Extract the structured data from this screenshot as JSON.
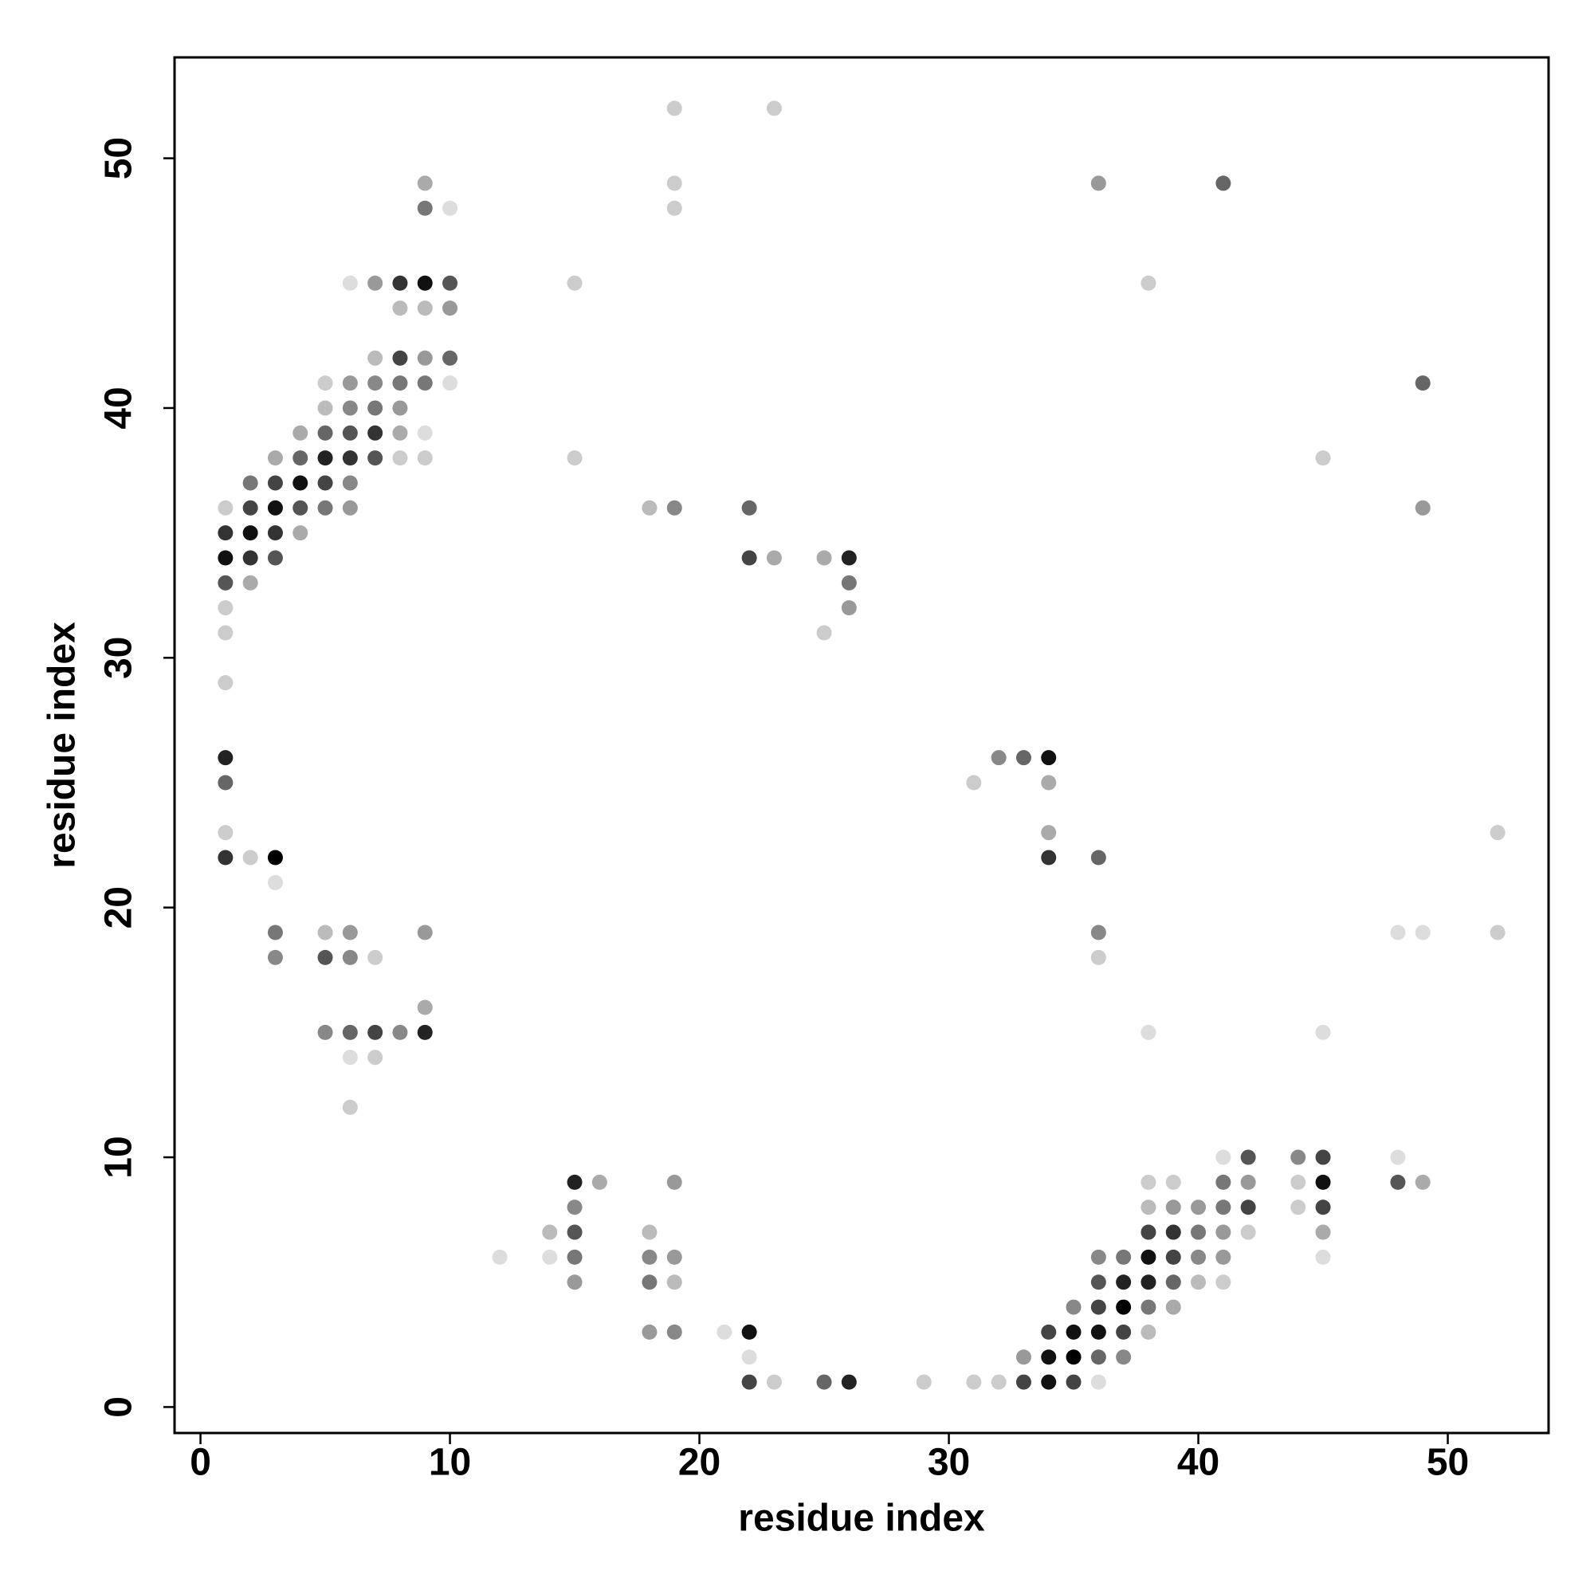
{
  "chart_data": {
    "type": "scatter",
    "xlabel": "residue index",
    "ylabel": "residue index",
    "xlim": [
      -1.04,
      54.04
    ],
    "ylim": [
      -1.04,
      54.04
    ],
    "xticks": [
      0,
      10,
      20,
      30,
      40,
      50
    ],
    "yticks": [
      0,
      10,
      20,
      30,
      40,
      50
    ],
    "x": [
      19,
      23,
      9,
      19,
      36,
      41,
      9,
      10,
      19,
      6,
      7,
      8,
      9,
      10,
      15,
      38,
      8,
      9,
      10,
      7,
      8,
      9,
      10,
      5,
      6,
      7,
      8,
      9,
      10,
      49,
      5,
      6,
      7,
      8,
      4,
      5,
      6,
      7,
      8,
      9,
      3,
      4,
      5,
      6,
      7,
      8,
      9,
      15,
      45,
      2,
      3,
      4,
      5,
      6,
      1,
      2,
      3,
      4,
      5,
      6,
      18,
      19,
      22,
      49,
      1,
      2,
      3,
      4,
      1,
      2,
      3,
      22,
      23,
      25,
      26,
      1,
      2,
      26,
      1,
      26,
      1,
      25,
      1,
      1,
      32,
      33,
      34,
      1,
      31,
      34,
      1,
      34,
      52,
      1,
      2,
      3,
      34,
      36,
      3,
      3,
      5,
      6,
      9,
      36,
      48,
      49,
      52,
      3,
      5,
      6,
      7,
      36,
      9,
      5,
      6,
      7,
      8,
      9,
      38,
      45,
      6,
      7,
      6,
      41,
      42,
      44,
      45,
      48,
      15,
      16,
      19,
      38,
      39,
      41,
      42,
      44,
      45,
      48,
      49,
      15,
      38,
      39,
      40,
      41,
      42,
      44,
      45,
      14,
      15,
      18,
      38,
      39,
      40,
      41,
      42,
      45,
      12,
      14,
      15,
      18,
      19,
      36,
      37,
      38,
      39,
      40,
      41,
      45,
      15,
      18,
      19,
      36,
      37,
      38,
      39,
      40,
      41,
      35,
      36,
      37,
      38,
      39,
      18,
      19,
      21,
      22,
      34,
      35,
      36,
      37,
      38,
      22,
      33,
      34,
      35,
      36,
      37,
      22,
      23,
      25,
      26,
      29,
      31,
      32,
      33,
      34,
      35,
      36
    ],
    "values": [
      52,
      52,
      49,
      49,
      49,
      49,
      48,
      48,
      48,
      45,
      45,
      45,
      45,
      45,
      45,
      45,
      44,
      44,
      44,
      42,
      42,
      42,
      42,
      41,
      41,
      41,
      41,
      41,
      41,
      41,
      40,
      40,
      40,
      40,
      39,
      39,
      39,
      39,
      39,
      39,
      38,
      38,
      38,
      38,
      38,
      38,
      38,
      38,
      38,
      37,
      37,
      37,
      37,
      37,
      36,
      36,
      36,
      36,
      36,
      36,
      36,
      36,
      36,
      36,
      35,
      35,
      35,
      35,
      34,
      34,
      34,
      34,
      34,
      34,
      34,
      33,
      33,
      33,
      32,
      32,
      31,
      31,
      29,
      26,
      26,
      26,
      26,
      25,
      25,
      25,
      23,
      23,
      23,
      22,
      22,
      22,
      22,
      22,
      21,
      19,
      19,
      19,
      19,
      19,
      19,
      19,
      19,
      18,
      18,
      18,
      18,
      18,
      16,
      15,
      15,
      15,
      15,
      15,
      15,
      15,
      14,
      14,
      12,
      10,
      10,
      10,
      10,
      10,
      9,
      9,
      9,
      9,
      9,
      9,
      9,
      9,
      9,
      9,
      9,
      8,
      8,
      8,
      8,
      8,
      8,
      8,
      8,
      7,
      7,
      7,
      7,
      7,
      7,
      7,
      7,
      7,
      6,
      6,
      6,
      6,
      6,
      6,
      6,
      6,
      6,
      6,
      6,
      6,
      5,
      5,
      5,
      5,
      5,
      5,
      5,
      5,
      5,
      4,
      4,
      4,
      4,
      4,
      3,
      3,
      3,
      3,
      3,
      3,
      3,
      3,
      3,
      2,
      2,
      2,
      2,
      2,
      2,
      1,
      1,
      1,
      1,
      1,
      1,
      1,
      1,
      1,
      1,
      1
    ],
    "colors": [
      "#ccc",
      "#ccc",
      "#aaa",
      "#ccc",
      "#999",
      "#666",
      "#777",
      "#ddd",
      "#ccc",
      "#ddd",
      "#999",
      "#333",
      "#111",
      "#555",
      "#ccc",
      "#ccc",
      "#bbb",
      "#bbb",
      "#999",
      "#bbb",
      "#444",
      "#999",
      "#666",
      "#ccc",
      "#999",
      "#888",
      "#777",
      "#777",
      "#ddd",
      "#666",
      "#bbb",
      "#888",
      "#777",
      "#999",
      "#aaa",
      "#666",
      "#555",
      "#333",
      "#aaa",
      "#ddd",
      "#aaa",
      "#666",
      "#222",
      "#333",
      "#555",
      "#ccc",
      "#ccc",
      "#ccc",
      "#ccc",
      "#777",
      "#444",
      "#111",
      "#444",
      "#888",
      "#ccc",
      "#444",
      "#111",
      "#555",
      "#777",
      "#999",
      "#bbb",
      "#888",
      "#666",
      "#999",
      "#333",
      "#111",
      "#333",
      "#aaa",
      "#111",
      "#333",
      "#555",
      "#444",
      "#aaa",
      "#aaa",
      "#222",
      "#555",
      "#aaa",
      "#777",
      "#ccc",
      "#999",
      "#ccc",
      "#ccc",
      "#ccc",
      "#222",
      "#888",
      "#666",
      "#111",
      "#666",
      "#ccc",
      "#aaa",
      "#ccc",
      "#aaa",
      "#ccc",
      "#333",
      "#ccc",
      "#000",
      "#333",
      "#666",
      "#ddd",
      "#777",
      "#bbb",
      "#999",
      "#999",
      "#888",
      "#ddd",
      "#ddd",
      "#ccc",
      "#888",
      "#555",
      "#888",
      "#ccc",
      "#ccc",
      "#aaa",
      "#888",
      "#666",
      "#444",
      "#888",
      "#222",
      "#ddd",
      "#ddd",
      "#ddd",
      "#ccc",
      "#ccc",
      "#ddd",
      "#555",
      "#888",
      "#444",
      "#ddd",
      "#222",
      "#aaa",
      "#999",
      "#ccc",
      "#ccc",
      "#777",
      "#999",
      "#ccc",
      "#111",
      "#555",
      "#aaa",
      "#888",
      "#bbb",
      "#999",
      "#999",
      "#777",
      "#444",
      "#ccc",
      "#444",
      "#bbb",
      "#555",
      "#bbb",
      "#444",
      "#333",
      "#777",
      "#999",
      "#ccc",
      "#aaa",
      "#ddd",
      "#ddd",
      "#777",
      "#888",
      "#999",
      "#888",
      "#777",
      "#111",
      "#444",
      "#888",
      "#999",
      "#ddd",
      "#999",
      "#777",
      "#bbb",
      "#555",
      "#222",
      "#222",
      "#666",
      "#bbb",
      "#ccc",
      "#888",
      "#444",
      "#000",
      "#777",
      "#aaa",
      "#999",
      "#888",
      "#ddd",
      "#111",
      "#444",
      "#111",
      "#111",
      "#444",
      "#bbb",
      "#ddd",
      "#999",
      "#111",
      "#000",
      "#666",
      "#888",
      "#444",
      "#ccc",
      "#666",
      "#222",
      "#ccc",
      "#ccc",
      "#ccc",
      "#444",
      "#111",
      "#444",
      "#ddd"
    ]
  }
}
